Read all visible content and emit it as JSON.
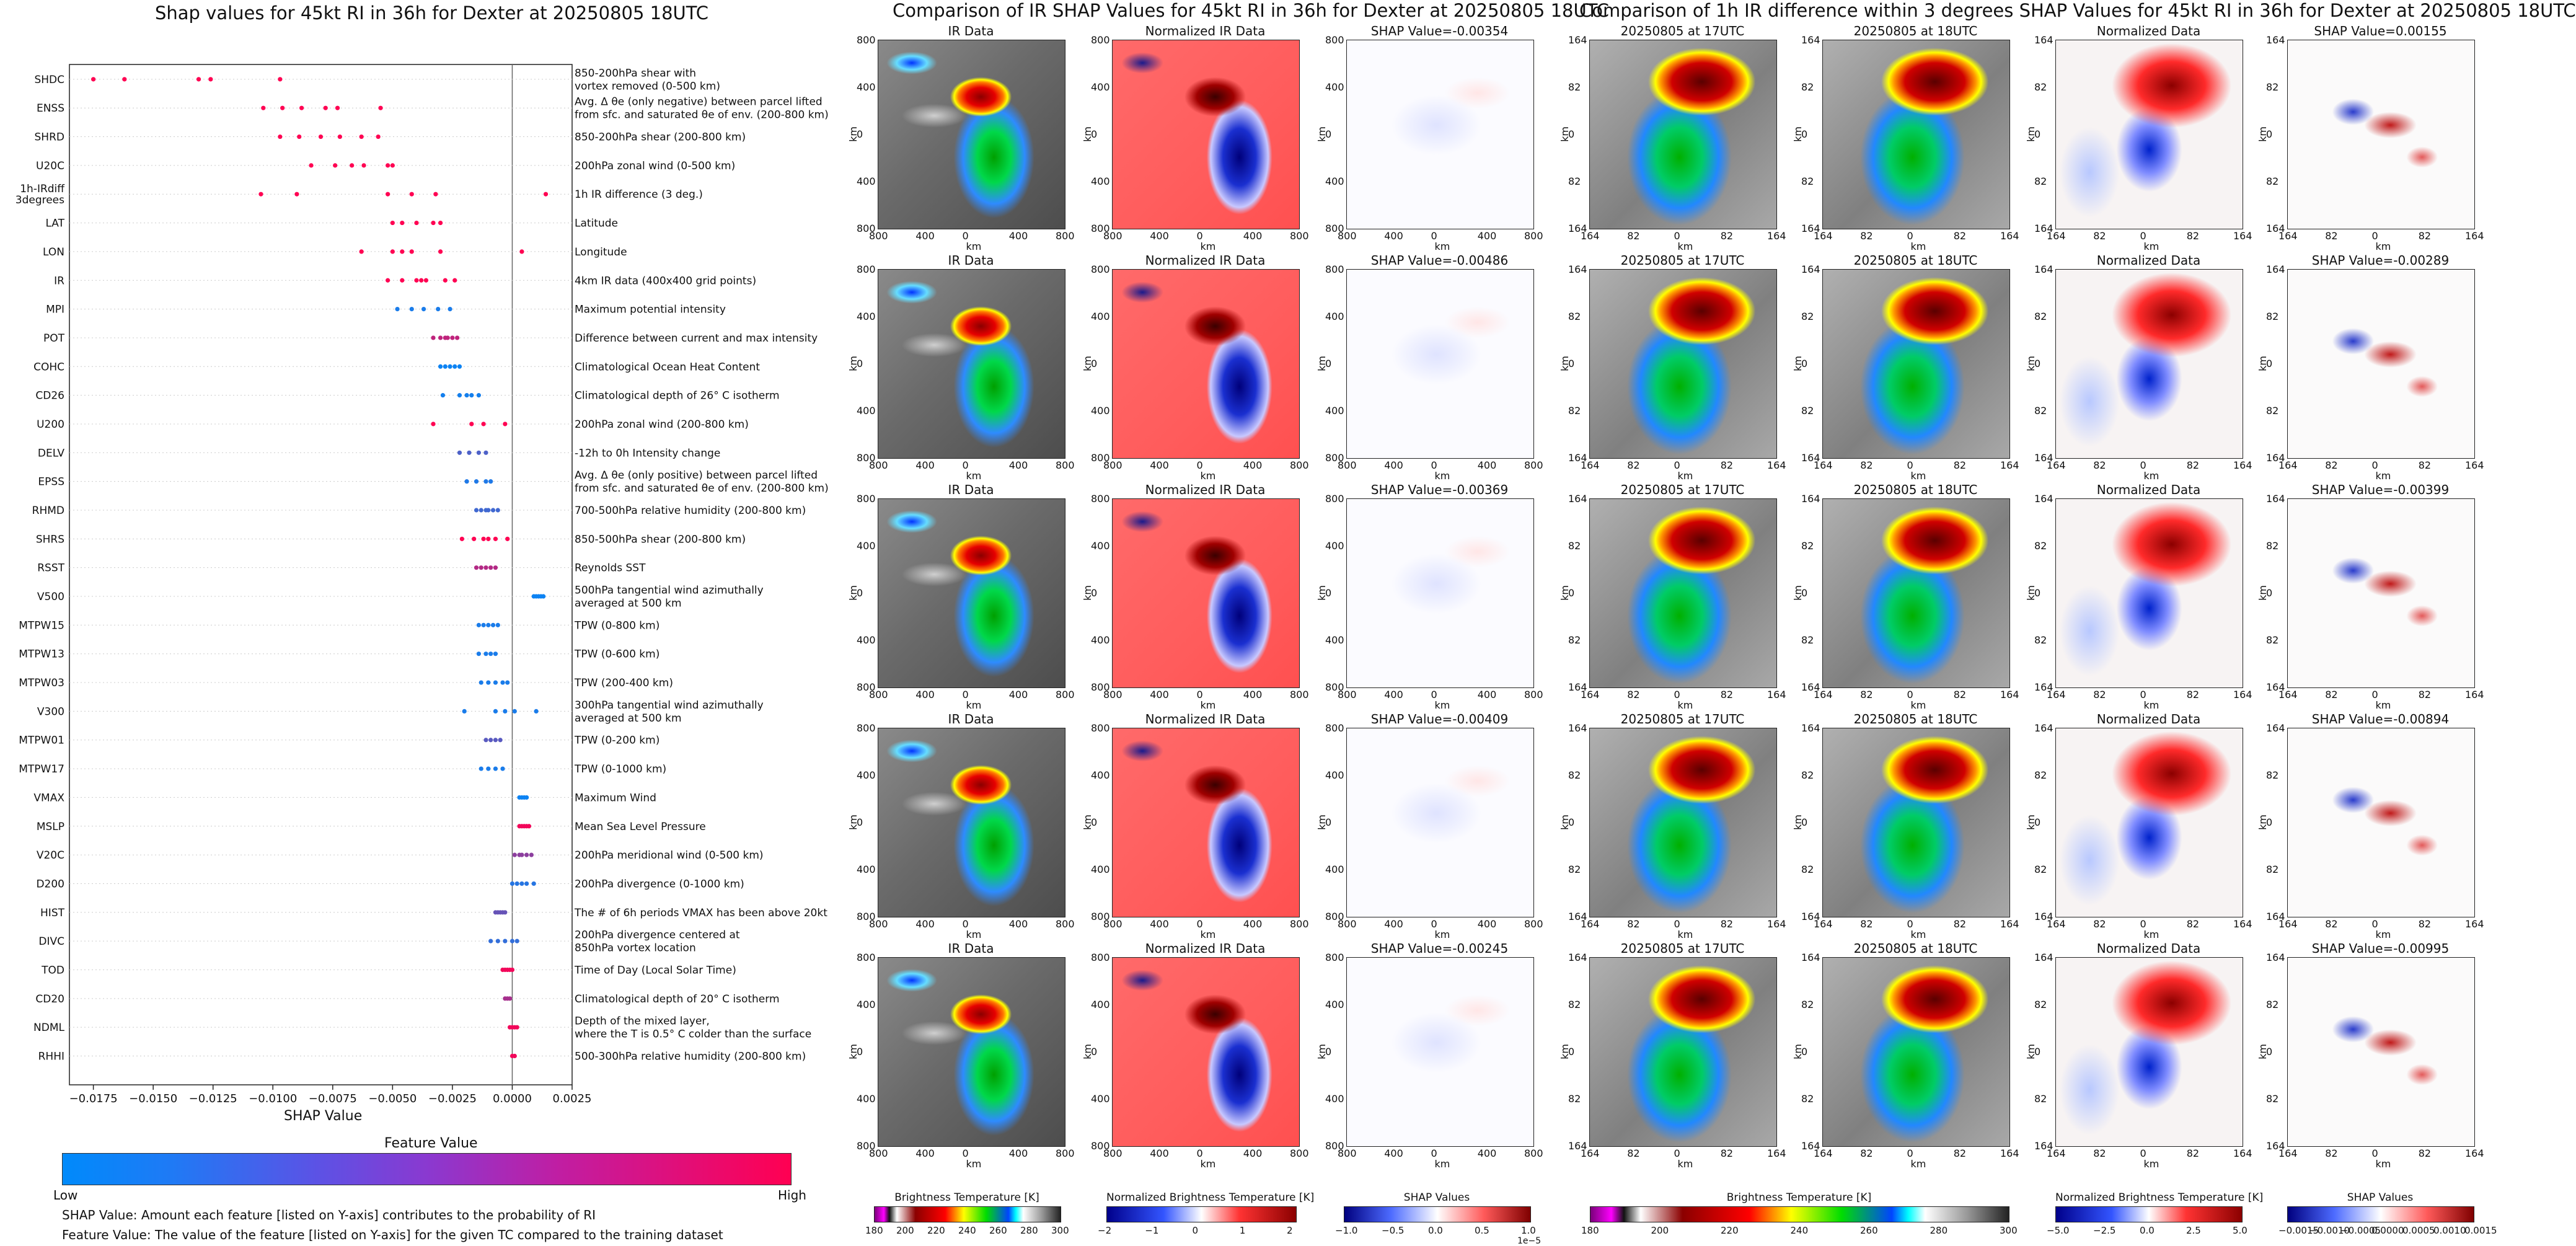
{
  "left": {
    "title": "Shap values for 45kt RI in 36h for Dexter at 20250805 18UTC",
    "xlabel": "SHAP Value",
    "colorbar_title": "Feature Value",
    "colorbar_low": "Low",
    "colorbar_high": "High",
    "note1": "SHAP Value: Amount each feature [listed on Y-axis] contributes to the probability of RI",
    "note2": "Feature Value: The value of the feature [listed on Y-axis] for the given TC compared to the training dataset"
  },
  "chart_data": [
    {
      "type": "scatter",
      "title": "Shap values for 45kt RI in 36h for Dexter at 20250805 18UTC",
      "xlabel": "SHAP Value",
      "xlim": [
        -0.0185,
        0.0025
      ],
      "xticks": [
        "−0.0175",
        "−0.0150",
        "−0.0125",
        "−0.0100",
        "−0.0075",
        "−0.0050",
        "−0.0025",
        "0.0000",
        "0.0025"
      ],
      "xtick_values": [
        -0.0175,
        -0.015,
        -0.0125,
        -0.01,
        -0.0075,
        -0.005,
        -0.0025,
        0,
        0.0025
      ],
      "colors": {
        "low": "#008afb",
        "high": "#ff0052"
      },
      "features": [
        {
          "name": "SHDC",
          "desc": [
            "850-200hPa shear with",
            "vortex removed (0-500 km)"
          ],
          "x": [
            -0.0175,
            -0.0162,
            -0.0131,
            -0.0126,
            -0.0097
          ],
          "c": [
            1,
            1,
            1,
            1,
            1
          ]
        },
        {
          "name": "ENSS",
          "desc": [
            "Avg. Δ θe (only negative) between parcel lifted",
            "from sfc. and saturated θe of env. (200-800 km)"
          ],
          "x": [
            -0.0104,
            -0.0096,
            -0.0088,
            -0.0078,
            -0.0073,
            -0.0055
          ],
          "c": [
            1,
            1,
            1,
            1,
            1,
            1
          ]
        },
        {
          "name": "SHRD",
          "desc": [
            "850-200hPa shear (200-800 km)"
          ],
          "x": [
            -0.0097,
            -0.0089,
            -0.008,
            -0.0072,
            -0.0063,
            -0.0056
          ],
          "c": [
            1,
            1,
            1,
            1,
            1,
            1
          ]
        },
        {
          "name": "U20C",
          "desc": [
            "200hPa zonal wind (0-500 km)"
          ],
          "x": [
            -0.0084,
            -0.0074,
            -0.0067,
            -0.0062,
            -0.0052,
            -0.005
          ],
          "c": [
            1,
            1,
            1,
            1,
            1,
            1
          ]
        },
        {
          "name": "1h-IRdiff\n3degrees",
          "desc": [
            "1h IR difference (3 deg.)"
          ],
          "x": [
            -0.0105,
            -0.009,
            -0.0052,
            -0.0042,
            -0.0032,
            0.0014
          ],
          "c": [
            1,
            1,
            1,
            1,
            1,
            1
          ]
        },
        {
          "name": "LAT",
          "desc": [
            "Latitude"
          ],
          "x": [
            -0.005,
            -0.0046,
            -0.004,
            -0.0033,
            -0.003
          ],
          "c": [
            1,
            1,
            1,
            1,
            1
          ]
        },
        {
          "name": "LON",
          "desc": [
            "Longitude"
          ],
          "x": [
            -0.0063,
            -0.005,
            -0.0046,
            -0.0042,
            -0.003,
            0.0004
          ],
          "c": [
            1,
            1,
            1,
            1,
            1,
            1
          ]
        },
        {
          "name": "IR",
          "desc": [
            "4km IR data (400x400 grid points)"
          ],
          "x": [
            -0.0052,
            -0.0046,
            -0.004,
            -0.0038,
            -0.0036,
            -0.0028,
            -0.0024
          ],
          "c": [
            1,
            1,
            1,
            1,
            1,
            1,
            1
          ]
        },
        {
          "name": "MPI",
          "desc": [
            "Maximum potential intensity"
          ],
          "x": [
            -0.0048,
            -0.0042,
            -0.0037,
            -0.0031,
            -0.0026
          ],
          "c": [
            0.1,
            0.1,
            0.1,
            0.1,
            0.1
          ]
        },
        {
          "name": "POT",
          "desc": [
            "Difference between current and max intensity"
          ],
          "x": [
            -0.0033,
            -0.003,
            -0.0028,
            -0.0027,
            -0.0025,
            -0.0023
          ],
          "c": [
            0.75,
            0.75,
            0.75,
            0.75,
            0.75,
            0.75
          ]
        },
        {
          "name": "COHC",
          "desc": [
            "Climatological Ocean Heat Content"
          ],
          "x": [
            -0.003,
            -0.0028,
            -0.0026,
            -0.0024,
            -0.0022
          ],
          "c": [
            0.05,
            0.05,
            0.05,
            0.05,
            0.05
          ]
        },
        {
          "name": "CD26",
          "desc": [
            "Climatological depth of 26° C isotherm"
          ],
          "x": [
            -0.0029,
            -0.0022,
            -0.0019,
            -0.0017,
            -0.0014
          ],
          "c": [
            0.08,
            0.08,
            0.08,
            0.08,
            0.08
          ]
        },
        {
          "name": "U200",
          "desc": [
            "200hPa zonal wind (200-800 km)"
          ],
          "x": [
            -0.0033,
            -0.0017,
            -0.0012,
            -0.0003
          ],
          "c": [
            1,
            1,
            1,
            1
          ]
        },
        {
          "name": "DELV",
          "desc": [
            "-12h to 0h Intensity change"
          ],
          "x": [
            -0.0022,
            -0.0018,
            -0.0014,
            -0.0011
          ],
          "c": [
            0.3,
            0.3,
            0.3,
            0.3
          ]
        },
        {
          "name": "EPSS",
          "desc": [
            "Avg. Δ θe (only positive) between parcel lifted",
            "from sfc. and saturated θe of env. (200-800 km)"
          ],
          "x": [
            -0.0019,
            -0.0015,
            -0.0011,
            -0.0009
          ],
          "c": [
            0.12,
            0.12,
            0.12,
            0.12
          ]
        },
        {
          "name": "RHMD",
          "desc": [
            "700-500hPa relative humidity (200-800 km)"
          ],
          "x": [
            -0.0015,
            -0.0013,
            -0.0011,
            -0.001,
            -0.0008,
            -0.0006
          ],
          "c": [
            0.25,
            0.25,
            0.25,
            0.25,
            0.25,
            0.25
          ]
        },
        {
          "name": "SHRS",
          "desc": [
            "850-500hPa shear (200-800 km)"
          ],
          "x": [
            -0.0021,
            -0.0016,
            -0.0012,
            -0.001,
            -0.0007,
            -0.0002
          ],
          "c": [
            1,
            1,
            1,
            1,
            1,
            1
          ]
        },
        {
          "name": "RSST",
          "desc": [
            "Reynolds SST"
          ],
          "x": [
            -0.0015,
            -0.0013,
            -0.0011,
            -0.0009,
            -0.0007
          ],
          "c": [
            0.7,
            0.7,
            0.7,
            0.7,
            0.7
          ]
        },
        {
          "name": "V500",
          "desc": [
            "500hPa tangential wind azimuthally",
            "averaged at 500 km"
          ],
          "x": [
            0.0009,
            0.001,
            0.0011,
            0.0012,
            0.0013
          ],
          "c": [
            0.05,
            0.05,
            0.05,
            0.05,
            0.05
          ]
        },
        {
          "name": "MTPW15",
          "desc": [
            "TPW (0-800 km)"
          ],
          "x": [
            -0.0014,
            -0.0012,
            -0.001,
            -0.0008,
            -0.0006
          ],
          "c": [
            0.1,
            0.1,
            0.1,
            0.1,
            0.1
          ]
        },
        {
          "name": "MTPW13",
          "desc": [
            "TPW (0-600 km)"
          ],
          "x": [
            -0.0014,
            -0.0011,
            -0.0009,
            -0.0007
          ],
          "c": [
            0.1,
            0.1,
            0.1,
            0.1
          ]
        },
        {
          "name": "MTPW03",
          "desc": [
            "TPW (200-400 km)"
          ],
          "x": [
            -0.0013,
            -0.001,
            -0.0007,
            -0.0004,
            -0.0002
          ],
          "c": [
            0.1,
            0.1,
            0.1,
            0.1,
            0.1
          ]
        },
        {
          "name": "V300",
          "desc": [
            "300hPa tangential wind azimuthally",
            "averaged at 500 km"
          ],
          "x": [
            -0.002,
            -0.0007,
            -0.0003,
            0.0001,
            0.001
          ],
          "c": [
            0.1,
            0.1,
            0.1,
            0.1,
            0.1
          ]
        },
        {
          "name": "MTPW01",
          "desc": [
            "TPW (0-200 km)"
          ],
          "x": [
            -0.0011,
            -0.0009,
            -0.0007,
            -0.0005
          ],
          "c": [
            0.35,
            0.35,
            0.35,
            0.35
          ]
        },
        {
          "name": "MTPW17",
          "desc": [
            "TPW (0-1000 km)"
          ],
          "x": [
            -0.0013,
            -0.001,
            -0.0007,
            -0.0004
          ],
          "c": [
            0.1,
            0.1,
            0.1,
            0.1
          ]
        },
        {
          "name": "VMAX",
          "desc": [
            "Maximum Wind"
          ],
          "x": [
            0.0003,
            0.0004,
            0.0005,
            0.0006
          ],
          "c": [
            0.05,
            0.05,
            0.05,
            0.05
          ]
        },
        {
          "name": "MSLP",
          "desc": [
            "Mean Sea Level Pressure"
          ],
          "x": [
            0.0003,
            0.0004,
            0.0005,
            0.0006,
            0.0007
          ],
          "c": [
            0.95,
            0.95,
            0.95,
            0.95,
            0.95
          ]
        },
        {
          "name": "V20C",
          "desc": [
            "200hPa meridional wind (0-500 km)"
          ],
          "x": [
            0.0001,
            0.0003,
            0.0004,
            0.0006,
            0.0008
          ],
          "c": [
            0.55,
            0.55,
            0.55,
            0.55,
            0.55
          ]
        },
        {
          "name": "D200",
          "desc": [
            "200hPa divergence (0-1000 km)"
          ],
          "x": [
            0.0,
            0.0002,
            0.0004,
            0.0006,
            0.0009
          ],
          "c": [
            0.15,
            0.15,
            0.15,
            0.15,
            0.15
          ]
        },
        {
          "name": "HIST",
          "desc": [
            "The # of 6h periods VMAX has been above 20kt"
          ],
          "x": [
            -0.0007,
            -0.0006,
            -0.0005,
            -0.0004,
            -0.0003
          ],
          "c": [
            0.4,
            0.4,
            0.4,
            0.4,
            0.4
          ]
        },
        {
          "name": "DIVC",
          "desc": [
            "200hPa divergence centered at",
            "850hPa vortex location"
          ],
          "x": [
            -0.0009,
            -0.0006,
            -0.0003,
            0.0,
            0.0002
          ],
          "c": [
            0.2,
            0.2,
            0.2,
            0.2,
            0.2
          ]
        },
        {
          "name": "TOD",
          "desc": [
            "Time of Day (Local Solar Time)"
          ],
          "x": [
            -0.0004,
            -0.0003,
            -0.0002,
            -0.0001,
            0.0
          ],
          "c": [
            0.95,
            0.95,
            0.95,
            0.95,
            0.95
          ]
        },
        {
          "name": "CD20",
          "desc": [
            "Climatological depth of 20° C isotherm"
          ],
          "x": [
            -0.0003,
            -0.0002,
            -0.0001
          ],
          "c": [
            0.65,
            0.65,
            0.65
          ]
        },
        {
          "name": "NDML",
          "desc": [
            "Depth of the mixed layer,",
            "where the T is 0.5° C colder than the surface"
          ],
          "x": [
            -0.0001,
            0.0,
            0.0001,
            0.0002
          ],
          "c": [
            0.95,
            0.95,
            0.95,
            0.95
          ]
        },
        {
          "name": "RHHI",
          "desc": [
            "500-300hPa relative humidity (200-800 km)"
          ],
          "x": [
            0.0,
            0.0001
          ],
          "c": [
            0.95,
            0.95
          ]
        }
      ]
    },
    {
      "type": "heatmap",
      "title": "Comparison of IR SHAP Values for 45kt RI in 36h for Dexter at 20250805 18UTC",
      "columns": [
        "IR Data",
        "Normalized IR Data"
      ],
      "shap_titles": [
        "SHAP Value=-0.00354",
        "SHAP Value=-0.00486",
        "SHAP Value=-0.00369",
        "SHAP Value=-0.00409",
        "SHAP Value=-0.00245"
      ],
      "xticks": [
        "800",
        "400",
        "0",
        "400",
        "800"
      ],
      "yticks": [
        "800",
        "400",
        "0",
        "400",
        "800"
      ],
      "xlabel": "km",
      "ylabel": "km",
      "colorbars": [
        {
          "title": "Brightness Temperature [K]",
          "ticks": [
            "180",
            "200",
            "220",
            "240",
            "260",
            "280",
            "300"
          ]
        },
        {
          "title": "Normalized Brightness Temperature [K]",
          "ticks": [
            "−2",
            "−1",
            "0",
            "1",
            "2"
          ]
        },
        {
          "title": "SHAP Values",
          "ticks": [
            "−1.0",
            "−0.5",
            "0.0",
            "0.5",
            "1.0"
          ],
          "offset": "1e−5"
        }
      ]
    },
    {
      "type": "heatmap",
      "title": "Comparison of 1h IR difference within 3 degrees SHAP Values for 45kt RI in 36h for Dexter at 20250805 18UTC",
      "columns": [
        "20250805 at 17UTC",
        "20250805 at 18UTC",
        "Normalized Data"
      ],
      "shap_titles": [
        "SHAP Value=0.00155",
        "SHAP Value=-0.00289",
        "SHAP Value=-0.00399",
        "SHAP Value=-0.00894",
        "SHAP Value=-0.00995"
      ],
      "xticks": [
        "164",
        "82",
        "0",
        "82",
        "164"
      ],
      "yticks": [
        "164",
        "82",
        "0",
        "82",
        "164"
      ],
      "xlabel": "km",
      "ylabel": "km",
      "colorbars": [
        {
          "title": "Brightness Temperature [K]",
          "ticks": [
            "180",
            "200",
            "220",
            "240",
            "260",
            "280",
            "300"
          ]
        },
        {
          "title": "Normalized Brightness Temperature [K]",
          "ticks": [
            "−5.0",
            "−2.5",
            "0.0",
            "2.5",
            "5.0"
          ]
        },
        {
          "title": "SHAP Values",
          "ticks": [
            "−0.0015",
            "−0.0010",
            "−0.0005",
            "0.0000",
            "0.0005",
            "0.0010",
            "0.0015"
          ]
        }
      ]
    }
  ]
}
